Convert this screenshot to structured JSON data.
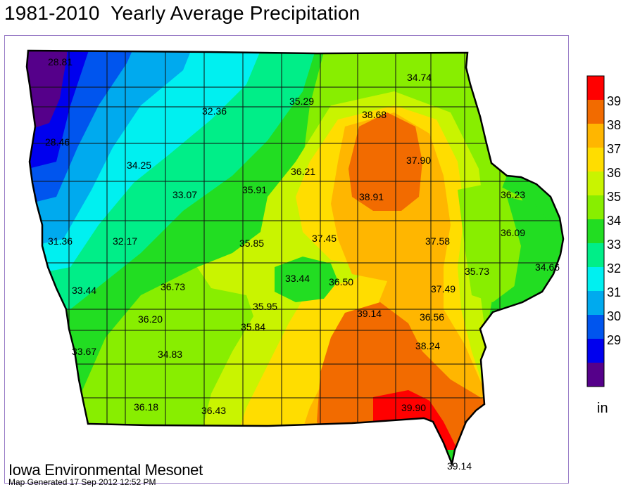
{
  "title": "1981-2010  Yearly Average Precipitation",
  "footer": {
    "organization": "Iowa Environmental Mesonet",
    "generated": "Map Generated 17 Sep 2012 12:52 PM"
  },
  "legend": {
    "unit": "in",
    "ticks": [
      "39",
      "38",
      "37",
      "36",
      "35",
      "34",
      "33",
      "32",
      "31",
      "30",
      "29"
    ],
    "colors": [
      "#ff0000",
      "#f26b00",
      "#ffb600",
      "#ffdd00",
      "#c9f400",
      "#88ee00",
      "#22dd22",
      "#00ee88",
      "#00f0f0",
      "#00aaee",
      "#0055ee",
      "#0000ee",
      "#55008a"
    ]
  },
  "stations": [
    {
      "label": "28.81"
    },
    {
      "label": "34.74"
    },
    {
      "label": "32.36"
    },
    {
      "label": "35.29"
    },
    {
      "label": "38.68"
    },
    {
      "label": "37.90"
    },
    {
      "label": "28.46"
    },
    {
      "label": "36.21"
    },
    {
      "label": "34.25"
    },
    {
      "label": "36.23"
    },
    {
      "label": "38.91"
    },
    {
      "label": "33.07"
    },
    {
      "label": "35.91"
    },
    {
      "label": "31.36"
    },
    {
      "label": "32.17"
    },
    {
      "label": "35.85"
    },
    {
      "label": "37.45"
    },
    {
      "label": "37.58"
    },
    {
      "label": "36.09"
    },
    {
      "label": "35.73"
    },
    {
      "label": "34.66"
    },
    {
      "label": "33.44"
    },
    {
      "label": "36.73"
    },
    {
      "label": "33.44"
    },
    {
      "label": "36.50"
    },
    {
      "label": "37.49"
    },
    {
      "label": "35.95"
    },
    {
      "label": "36.20"
    },
    {
      "label": "35.84"
    },
    {
      "label": "39.14"
    },
    {
      "label": "36.56"
    },
    {
      "label": "33.67"
    },
    {
      "label": "34.83"
    },
    {
      "label": "38.24"
    },
    {
      "label": "36.18"
    },
    {
      "label": "36.43"
    },
    {
      "label": "39.90"
    },
    {
      "label": "39.14"
    }
  ]
}
